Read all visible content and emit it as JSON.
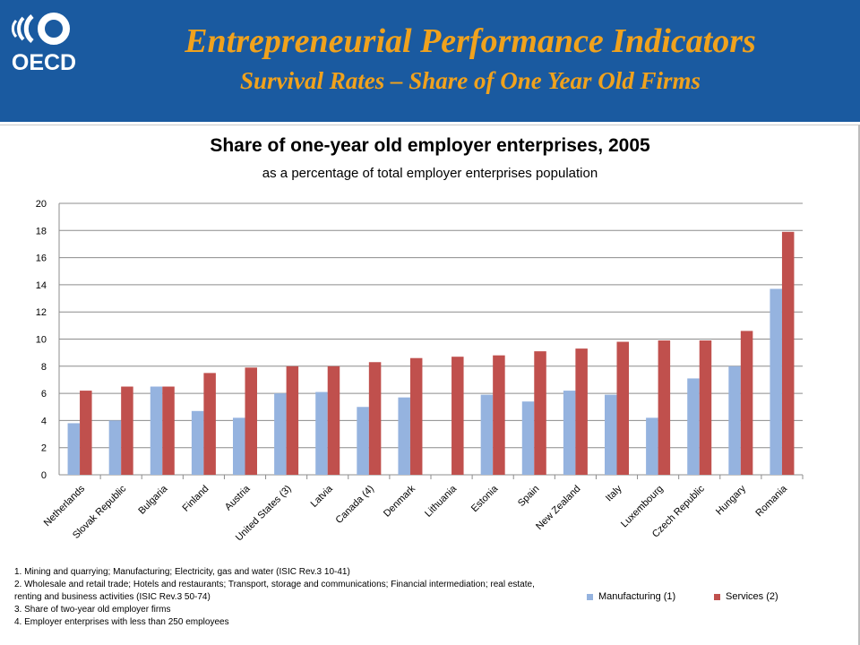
{
  "header": {
    "logo_text": "OECD",
    "title": "Entrepreneurial Performance Indicators",
    "subtitle": "Survival Rates – Share of One Year Old Firms"
  },
  "colors": {
    "header_bg": "#1a5aa0",
    "title_text": "#f0a21d",
    "manufacturing": "#95b3df",
    "services": "#c0504d"
  },
  "chart_data": {
    "type": "bar",
    "title": "Share of one-year old employer enterprises, 2005",
    "subtitle": "as a percentage of total employer enterprises population",
    "xlabel": "",
    "ylabel": "",
    "ylim": [
      0,
      20
    ],
    "yticks": [
      0,
      2,
      4,
      6,
      8,
      10,
      12,
      14,
      16,
      18,
      20
    ],
    "grid": true,
    "legend_position": "bottom-right",
    "categories": [
      "Netherlands",
      "Slovak Republic",
      "Bulgaria",
      "Finland",
      "Austria",
      "United States (3)",
      "Latvia",
      "Canada (4)",
      "Denmark",
      "Lithuania",
      "Estonia",
      "Spain",
      "New Zealand",
      "Italy",
      "Luxembourg",
      "Czech Republic",
      "Hungary",
      "Romania"
    ],
    "series": [
      {
        "name": "Manufacturing (1)",
        "color": "#95b3df",
        "values": [
          3.8,
          4.0,
          6.5,
          4.7,
          4.2,
          6.0,
          6.1,
          5.0,
          5.7,
          null,
          5.9,
          5.4,
          6.2,
          5.9,
          4.2,
          7.1,
          8.0,
          13.7
        ]
      },
      {
        "name": "Services (2)",
        "color": "#c0504d",
        "values": [
          6.2,
          6.5,
          6.5,
          7.5,
          7.9,
          8.0,
          8.0,
          8.3,
          8.6,
          8.7,
          8.8,
          9.1,
          9.3,
          9.8,
          9.9,
          9.9,
          10.6,
          17.9
        ]
      }
    ]
  },
  "notes": [
    "1. Mining and quarrying; Manufacturing; Electricity, gas and water (ISIC Rev.3 10-41)",
    "2. Wholesale and retail trade; Hotels and restaurants; Transport, storage and communications; Financial intermediation; real estate, renting and business activities (ISIC Rev.3 50-74)",
    "3. Share of two-year old employer firms",
    "4. Employer enterprises with less than 250 employees"
  ]
}
